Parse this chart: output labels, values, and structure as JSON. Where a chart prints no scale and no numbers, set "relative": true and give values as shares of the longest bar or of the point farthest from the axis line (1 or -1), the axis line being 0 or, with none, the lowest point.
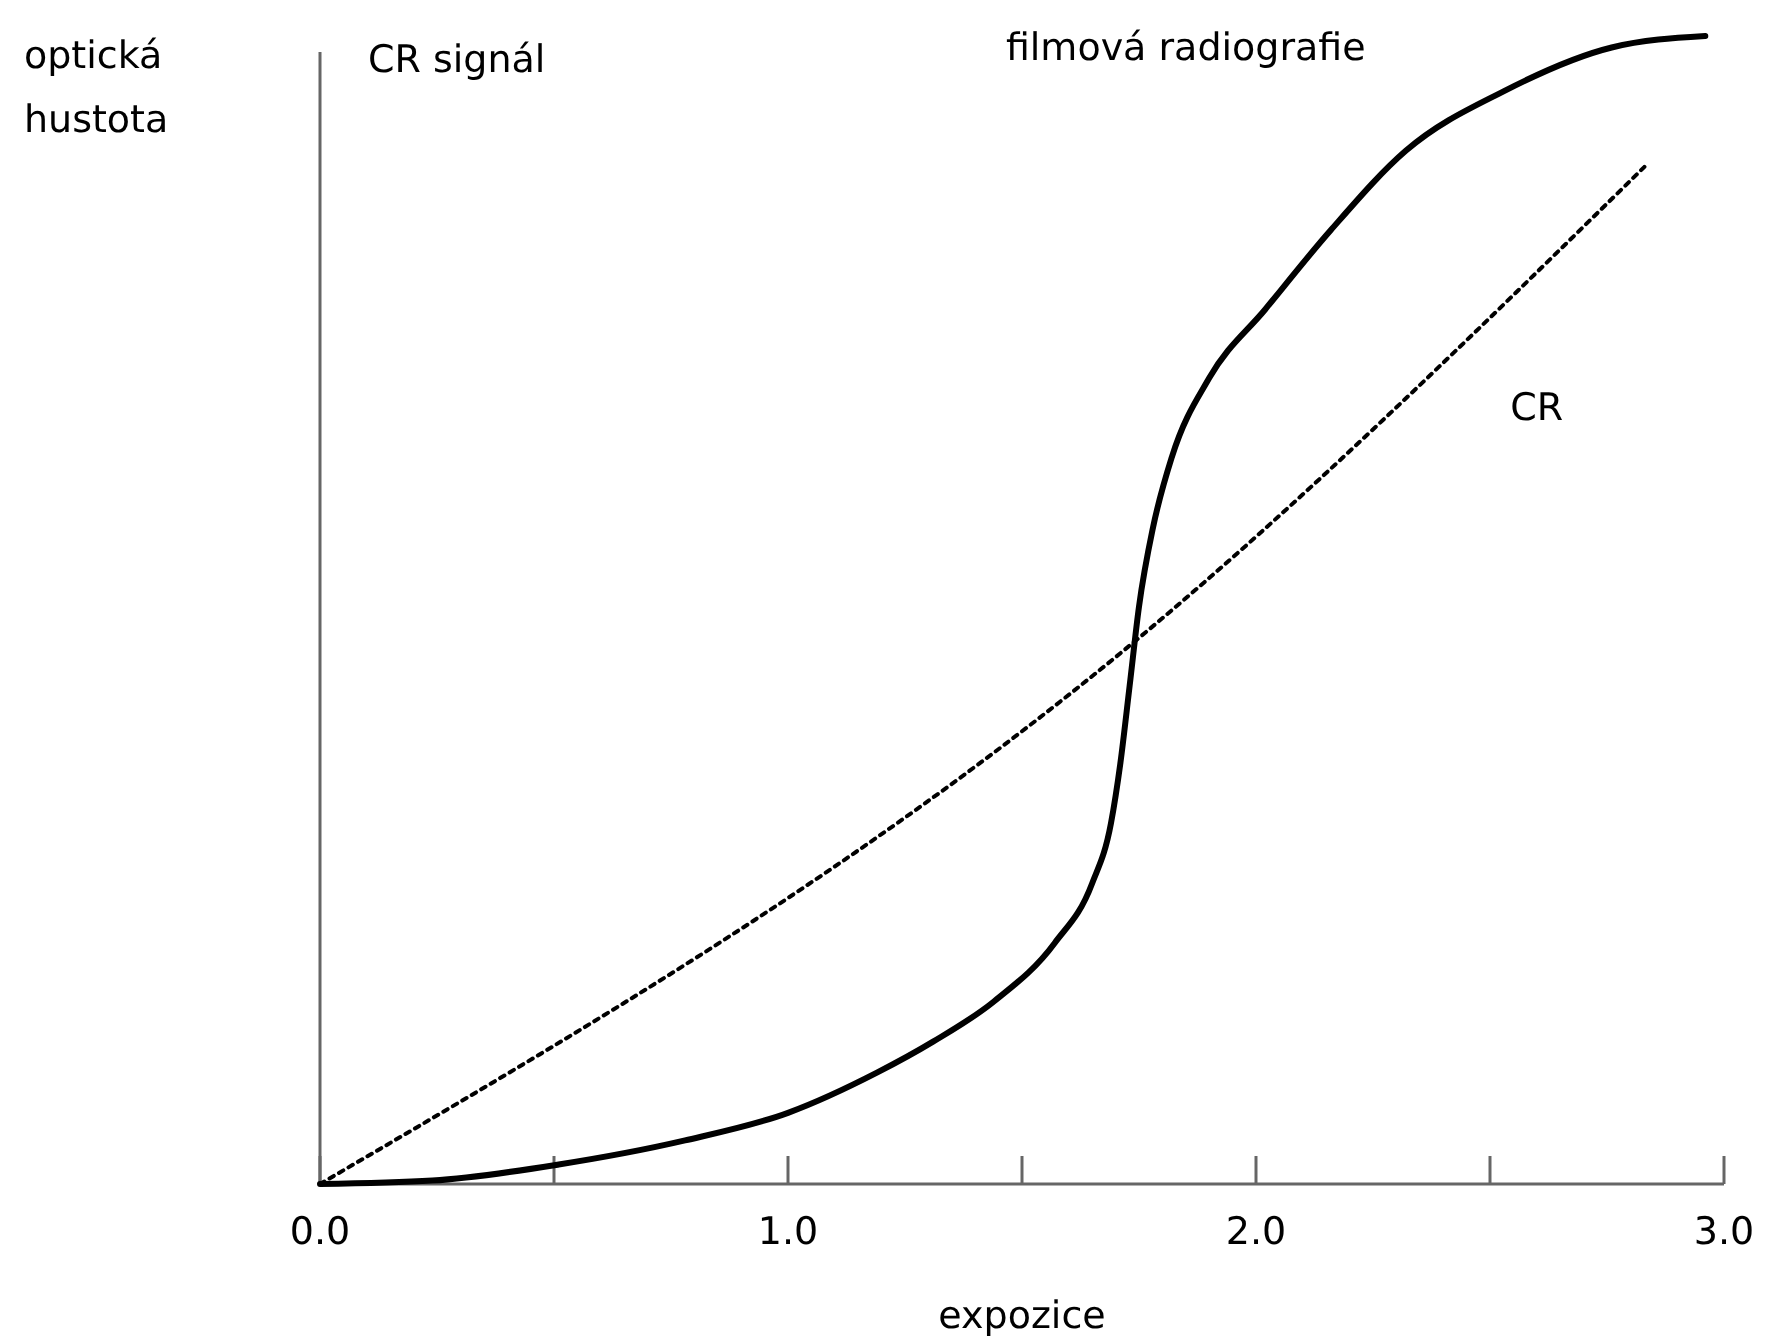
{
  "chart_data": {
    "type": "line",
    "relative": true,
    "xlabel": "expozice",
    "ylabel": "optická hustota",
    "annotations": [
      "CR signál"
    ],
    "xlim": [
      0,
      3
    ],
    "xticks": [
      {
        "value": 0,
        "label": "0.0"
      },
      {
        "value": 0.5,
        "label": null
      },
      {
        "value": 1,
        "label": "1.0"
      },
      {
        "value": 1.5,
        "label": null
      },
      {
        "value": 2,
        "label": "2.0"
      },
      {
        "value": 2.5,
        "label": null
      },
      {
        "value": 3,
        "label": "3.0"
      }
    ],
    "tick_labels": "x",
    "grid": false,
    "marker": "none",
    "series": [
      {
        "name": "filmová radiografie",
        "color": "#000000",
        "line_style": "solid",
        "x": [
          0,
          0.24,
          0.51,
          0.78,
          1.0,
          1.19,
          1.31,
          1.44,
          1.57,
          1.65,
          1.69,
          1.71,
          1.73,
          1.75,
          1.78,
          1.82,
          1.9,
          2.02,
          2.16,
          2.32,
          2.53,
          2.76,
          2.96
        ],
        "values": [
          0,
          0.003,
          0.017,
          0.038,
          0.062,
          0.097,
          0.124,
          0.159,
          0.21,
          0.262,
          0.314,
          0.366,
          0.434,
          0.503,
          0.572,
          0.633,
          0.702,
          0.762,
          0.831,
          0.9,
          0.952,
          0.99,
          1
        ]
      },
      {
        "name": "CR",
        "color": "#000000",
        "line_style": "dotted",
        "x": [
          0,
          1.73,
          2.83
        ],
        "values": [
          0,
          0.469,
          0.886
        ]
      }
    ]
  }
}
